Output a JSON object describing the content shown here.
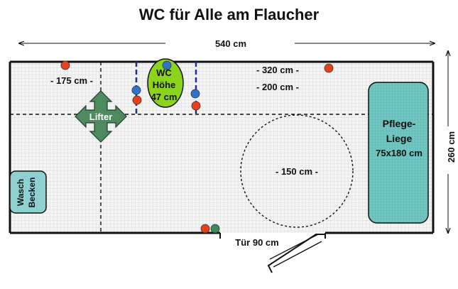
{
  "title": "WC für Alle am Flaucher",
  "dimensions": {
    "width": "540 cm",
    "height": "260 cm"
  },
  "measurements": {
    "left_span": "- 175 cm -",
    "right_span_top": "- 320 cm -",
    "right_span_bottom": "- 200 cm -",
    "turning_circle": "- 150 cm -"
  },
  "fixtures": {
    "lifter": "Lifter",
    "wc_line1": "WC",
    "wc_line2": "Höhe",
    "wc_line3": "47 cm",
    "care_bed_line1": "Pflege-",
    "care_bed_line2": "Liege",
    "care_bed_line3": "75x180 cm",
    "sink_line1": "Wasch",
    "sink_line2": "Becken",
    "door": "Tür 90 cm"
  },
  "colors": {
    "wall": "#111111",
    "grid_bg": "#f4f4f4",
    "grid_line": "#d2d2d2",
    "wc_fill": "#8cd41c",
    "lifter_fill": "#4f8a5f",
    "bed_fill": "#6fc6c2",
    "sink_fill": "#8fd0d0",
    "red_button": "#e8401c",
    "blue_button": "#2e74c8",
    "green_button": "#3c8c5a",
    "grab_bar": "#1e2ea0"
  }
}
